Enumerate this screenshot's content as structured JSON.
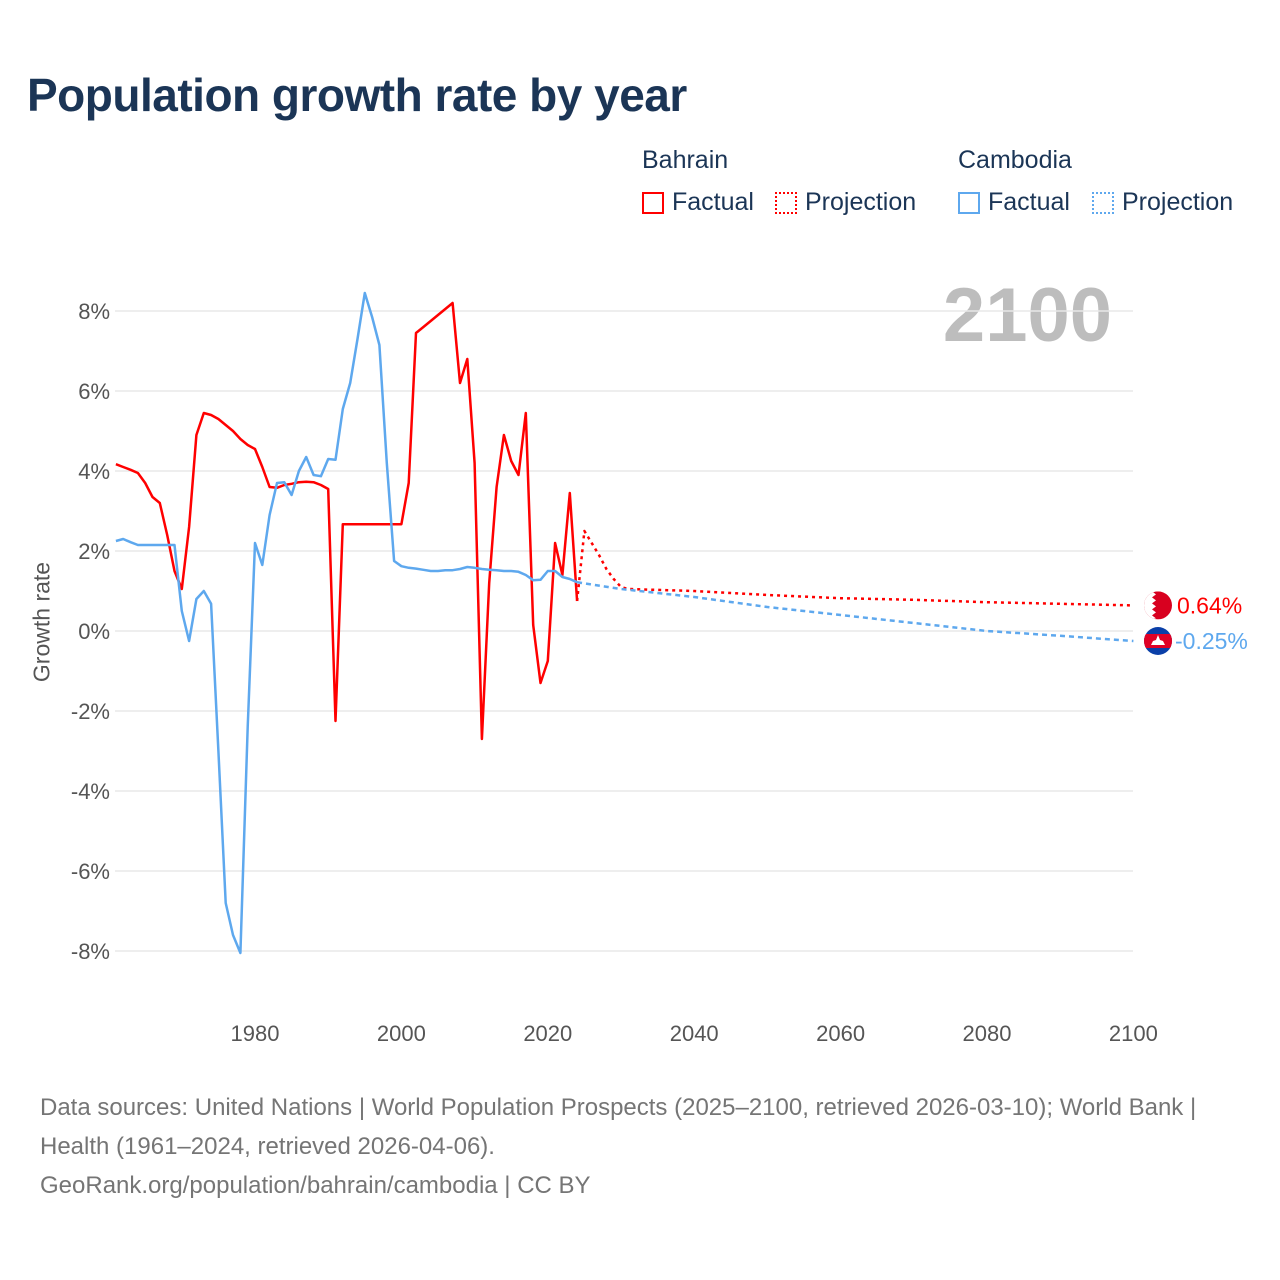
{
  "title": "Population growth rate by year",
  "legend": {
    "groups": [
      {
        "name": "Bahrain",
        "factual": "Factual",
        "projection": "Projection",
        "color": "#ff0000"
      },
      {
        "name": "Cambodia",
        "factual": "Factual",
        "projection": "Projection",
        "color": "#5ea8ee"
      }
    ]
  },
  "current_year": "2100",
  "end_labels": {
    "bahrain": "0.64%",
    "cambodia": "-0.25%"
  },
  "flags": {
    "bahrain": "bahrain-flag-icon",
    "cambodia": "cambodia-flag-icon"
  },
  "footer": {
    "sources": "Data sources: United Nations | World Population Prospects (2025–2100, retrieved 2026-03-10); World Bank | Health (1961–2024, retrieved 2026-04-06).",
    "credit": "GeoRank.org/population/bahrain/cambodia | CC BY"
  },
  "chart_data": {
    "type": "line",
    "title": "Population growth rate by year",
    "xlabel": "",
    "ylabel": "Growth rate",
    "xlim": [
      1961,
      2100
    ],
    "ylim": [
      -9,
      9
    ],
    "grid": true,
    "x_ticks": [
      1980,
      2000,
      2020,
      2040,
      2060,
      2080,
      2100
    ],
    "x_tick_labels": [
      "1980",
      "2000",
      "2020",
      "2040",
      "2060",
      "2080",
      "2100"
    ],
    "y_ticks": [
      -8,
      -6,
      -4,
      -2,
      0,
      2,
      4,
      6,
      8
    ],
    "y_tick_labels": [
      "-8%",
      "-6%",
      "-4%",
      "-2%",
      "0%",
      "2%",
      "4%",
      "6%",
      "8%"
    ],
    "legend_position": "top-right",
    "series": [
      {
        "name": "Bahrain Factual",
        "color": "#ff0000",
        "style": "solid",
        "x": [
          1961,
          1962,
          1963,
          1964,
          1965,
          1966,
          1967,
          1968,
          1969,
          1970,
          1971,
          1972,
          1973,
          1974,
          1975,
          1976,
          1977,
          1978,
          1979,
          1980,
          1981,
          1982,
          1983,
          1984,
          1985,
          1986,
          1987,
          1988,
          1989,
          1990,
          1991,
          1992,
          1993,
          1994,
          1995,
          1996,
          1997,
          1998,
          1999,
          2000,
          2001,
          2002,
          2003,
          2004,
          2005,
          2006,
          2007,
          2008,
          2009,
          2010,
          2011,
          2012,
          2013,
          2014,
          2015,
          2016,
          2017,
          2018,
          2019,
          2020,
          2021,
          2022,
          2023,
          2024
        ],
        "y": [
          4.17,
          4.1,
          4.03,
          3.95,
          3.7,
          3.35,
          3.2,
          2.4,
          1.5,
          1.05,
          2.6,
          4.9,
          5.45,
          5.4,
          5.3,
          5.15,
          5.0,
          4.8,
          4.65,
          4.55,
          4.1,
          3.6,
          3.58,
          3.65,
          3.68,
          3.72,
          3.73,
          3.72,
          3.65,
          3.55,
          -2.25,
          2.67,
          2.67,
          2.67,
          2.67,
          2.67,
          2.67,
          2.67,
          2.67,
          2.67,
          3.7,
          7.45,
          7.6,
          7.75,
          7.9,
          8.05,
          8.2,
          6.2,
          6.8,
          4.2,
          -2.7,
          1.2,
          3.6,
          4.9,
          4.25,
          3.9,
          5.45,
          0.15,
          -1.3,
          -0.75,
          2.2,
          1.4,
          3.45,
          0.75
        ]
      },
      {
        "name": "Bahrain Projection",
        "color": "#ff0000",
        "style": "dotted",
        "x": [
          2024,
          2025,
          2026,
          2027,
          2028,
          2029,
          2030,
          2031,
          2040,
          2050,
          2060,
          2070,
          2080,
          2090,
          2100
        ],
        "y": [
          0.75,
          2.5,
          2.2,
          1.9,
          1.55,
          1.3,
          1.1,
          1.05,
          1.0,
          0.9,
          0.82,
          0.78,
          0.72,
          0.68,
          0.64
        ]
      },
      {
        "name": "Cambodia Factual",
        "color": "#5ea8ee",
        "style": "solid",
        "x": [
          1961,
          1962,
          1963,
          1964,
          1965,
          1966,
          1967,
          1968,
          1969,
          1970,
          1971,
          1972,
          1973,
          1974,
          1975,
          1976,
          1977,
          1978,
          1979,
          1980,
          1981,
          1982,
          1983,
          1984,
          1985,
          1986,
          1987,
          1988,
          1989,
          1990,
          1991,
          1992,
          1993,
          1994,
          1995,
          1996,
          1997,
          1998,
          1999,
          2000,
          2001,
          2002,
          2003,
          2004,
          2005,
          2006,
          2007,
          2008,
          2009,
          2010,
          2011,
          2012,
          2013,
          2014,
          2015,
          2016,
          2017,
          2018,
          2019,
          2020,
          2021,
          2022,
          2023,
          2024
        ],
        "y": [
          2.25,
          2.3,
          2.22,
          2.15,
          2.15,
          2.15,
          2.15,
          2.15,
          2.15,
          0.5,
          -0.25,
          0.8,
          1.0,
          0.68,
          -3.0,
          -6.8,
          -7.6,
          -8.05,
          -2.4,
          2.2,
          1.65,
          2.9,
          3.7,
          3.72,
          3.4,
          4.0,
          4.35,
          3.9,
          3.87,
          4.3,
          4.28,
          5.55,
          6.2,
          7.3,
          8.45,
          7.85,
          7.15,
          4.2,
          1.75,
          1.62,
          1.58,
          1.56,
          1.53,
          1.5,
          1.5,
          1.52,
          1.52,
          1.55,
          1.6,
          1.58,
          1.55,
          1.53,
          1.52,
          1.5,
          1.5,
          1.48,
          1.4,
          1.27,
          1.28,
          1.5,
          1.5,
          1.35,
          1.3,
          1.22
        ]
      },
      {
        "name": "Cambodia Projection",
        "color": "#5ea8ee",
        "style": "dashed",
        "x": [
          2024,
          2030,
          2040,
          2050,
          2060,
          2070,
          2080,
          2090,
          2100
        ],
        "y": [
          1.22,
          1.05,
          0.85,
          0.6,
          0.4,
          0.2,
          0.0,
          -0.12,
          -0.25
        ]
      }
    ]
  }
}
